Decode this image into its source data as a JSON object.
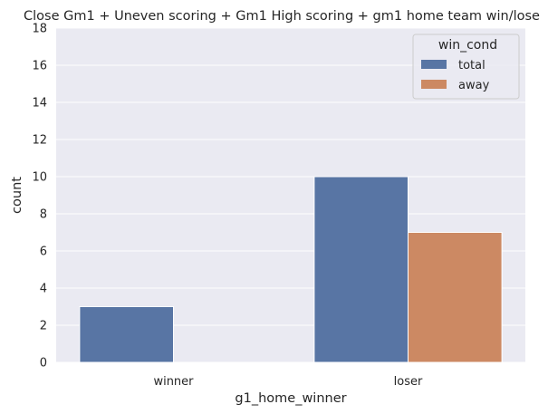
{
  "chart_data": {
    "type": "bar",
    "title": "Close Gm1 + Uneven scoring + Gm1 High scoring + gm1 home team win/lose",
    "xlabel": "g1_home_winner",
    "ylabel": "count",
    "categories": [
      "winner",
      "loser"
    ],
    "series": [
      {
        "name": "total",
        "values": [
          3,
          10
        ],
        "color": "#5875a4"
      },
      {
        "name": "away",
        "values": [
          0,
          7
        ],
        "color": "#cc8963"
      }
    ],
    "ylim": [
      0,
      18
    ],
    "yticks": [
      0,
      2,
      4,
      6,
      8,
      10,
      12,
      14,
      16,
      18
    ],
    "grid": true,
    "legend": {
      "title": "win_cond",
      "position": "top-right"
    },
    "background_color": "#eaeaf2",
    "grid_color": "#ffffff"
  }
}
